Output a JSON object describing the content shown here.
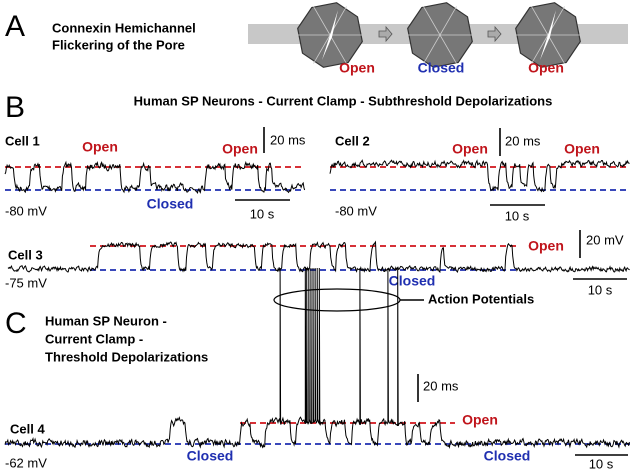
{
  "panel_a": {
    "letter": "A",
    "title_lines": [
      "Connexin Hemichannel",
      "Flickering of the Pore"
    ],
    "states": [
      "Open",
      "Closed",
      "Open"
    ]
  },
  "panel_b": {
    "letter": "B",
    "title": "Human SP Neurons - Current Clamp - Subthreshold Depolarizations",
    "cell_1": {
      "name": "Cell 1",
      "open_labels": [
        "Open",
        "Open"
      ],
      "scale_y": "20 ms",
      "closed": "Closed",
      "baseline": "-80 mV",
      "scale_x": "10 s"
    },
    "cell_2": {
      "name": "Cell 2",
      "open_labels": [
        "Open",
        "Open"
      ],
      "scale_y": "20 ms",
      "baseline": "-80 mV",
      "scale_x": "10 s"
    },
    "cell_3": {
      "name": "Cell 3",
      "open": "Open",
      "scale_y": "20 mV",
      "baseline": "-75 mV",
      "closed": "Closed",
      "scale_x": "10 s"
    }
  },
  "panel_c": {
    "letter": "C",
    "title_lines": [
      "Human SP Neuron -",
      "Current Clamp -",
      "Threshold Depolarizations"
    ],
    "annotation": "Action Potentials",
    "scale_y": "20 ms",
    "cell": "Cell 4",
    "open": "Open",
    "baseline": "-62 mV",
    "closed_labels": [
      "Closed",
      "Closed"
    ],
    "scale_x": "10 s"
  }
}
